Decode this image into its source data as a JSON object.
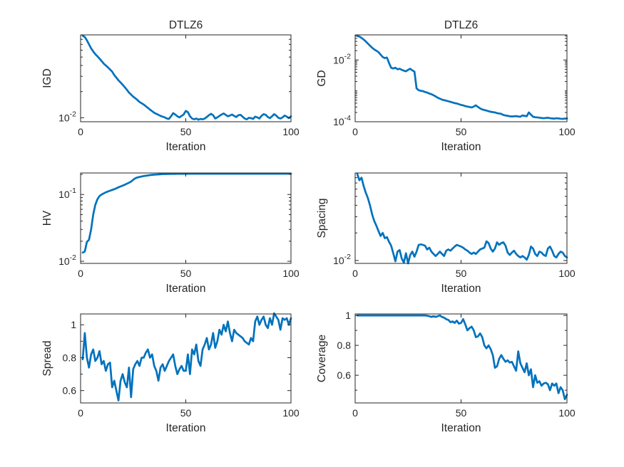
{
  "figure": {
    "kind": "matlab-style-multi-metric-convergence-figure",
    "colors": {
      "line": "#0072BD",
      "axis": "#262626",
      "background": "#FFFFFF"
    }
  },
  "chart_data": [
    {
      "name": "igd",
      "type": "line",
      "title": "DTLZ6",
      "xlabel": "Iteration",
      "ylabel": "IGD",
      "xscale": "linear",
      "yscale": "log",
      "xlim": [
        0,
        100
      ],
      "ylim": [
        0.009,
        0.09
      ],
      "xticks": [
        {
          "v": 0,
          "label": "0"
        },
        {
          "v": 50,
          "label": "50"
        },
        {
          "v": 100,
          "label": "100"
        }
      ],
      "yticks": [
        {
          "v": 0.01,
          "label": "10^{-2}"
        }
      ],
      "yminor": [],
      "grid": false,
      "legend": "none",
      "x_start": 1,
      "x_step": 1,
      "y": [
        0.088,
        0.085,
        0.078,
        0.07,
        0.063,
        0.058,
        0.054,
        0.051,
        0.048,
        0.045,
        0.042,
        0.04,
        0.038,
        0.036,
        0.034,
        0.031,
        0.029,
        0.027,
        0.0255,
        0.024,
        0.0225,
        0.021,
        0.0195,
        0.0185,
        0.0175,
        0.0168,
        0.016,
        0.0152,
        0.0147,
        0.0142,
        0.0136,
        0.013,
        0.0124,
        0.0119,
        0.0114,
        0.0111,
        0.0108,
        0.0105,
        0.0103,
        0.0101,
        0.0098,
        0.0097,
        0.0104,
        0.0113,
        0.0109,
        0.0104,
        0.0101,
        0.0105,
        0.0109,
        0.012,
        0.0116,
        0.0104,
        0.0098,
        0.0096,
        0.0098,
        0.0095,
        0.0097,
        0.0096,
        0.0098,
        0.0102,
        0.0107,
        0.0111,
        0.0107,
        0.0098,
        0.0101,
        0.0105,
        0.0109,
        0.0112,
        0.0108,
        0.0104,
        0.0106,
        0.0109,
        0.0105,
        0.0102,
        0.0107,
        0.0108,
        0.0103,
        0.0098,
        0.0096,
        0.01,
        0.0099,
        0.0097,
        0.0103,
        0.0101,
        0.0098,
        0.0105,
        0.011,
        0.0108,
        0.0102,
        0.0099,
        0.0104,
        0.011,
        0.0106,
        0.01,
        0.0098,
        0.0101,
        0.0106,
        0.0103,
        0.0099,
        0.0104
      ]
    },
    {
      "name": "gd",
      "type": "line",
      "title": "DTLZ6",
      "xlabel": "Iteration",
      "ylabel": "GD",
      "xscale": "linear",
      "yscale": "log",
      "xlim": [
        0,
        100
      ],
      "ylim": [
        0.0001,
        0.065
      ],
      "xticks": [
        {
          "v": 0,
          "label": "0"
        },
        {
          "v": 50,
          "label": "50"
        },
        {
          "v": 100,
          "label": "100"
        }
      ],
      "yticks": [
        {
          "v": 0.01,
          "label": "10^{-2}"
        },
        {
          "v": 0.0001,
          "label": "10^{-4}"
        }
      ],
      "yminor": [],
      "grid": false,
      "legend": "none",
      "x_start": 1,
      "x_step": 1,
      "y": [
        0.06,
        0.057,
        0.052,
        0.046,
        0.04,
        0.034,
        0.029,
        0.025,
        0.022,
        0.02,
        0.018,
        0.015,
        0.0125,
        0.0115,
        0.012,
        0.008,
        0.0056,
        0.0053,
        0.0056,
        0.005,
        0.0052,
        0.0048,
        0.0045,
        0.0043,
        0.0048,
        0.0052,
        0.0046,
        0.0042,
        0.0012,
        0.00105,
        0.001,
        0.00098,
        0.00092,
        0.00088,
        0.00082,
        0.00078,
        0.00072,
        0.00066,
        0.0006,
        0.00056,
        0.00052,
        0.0005,
        0.00048,
        0.00046,
        0.00044,
        0.00042,
        0.0004,
        0.00039,
        0.00037,
        0.00035,
        0.00034,
        0.00032,
        0.00031,
        0.0003,
        0.00029,
        0.00031,
        0.00034,
        0.0003,
        0.00027,
        0.00025,
        0.00024,
        0.00023,
        0.00022,
        0.00021,
        0.000205,
        0.0002,
        0.00019,
        0.000185,
        0.00018,
        0.000165,
        0.00016,
        0.000155,
        0.00015,
        0.000148,
        0.00015,
        0.000152,
        0.000148,
        0.000145,
        0.00016,
        0.000155,
        0.00015,
        0.0002,
        0.00017,
        0.000145,
        0.00014,
        0.000138,
        0.000135,
        0.000132,
        0.00013,
        0.000132,
        0.000135,
        0.00013,
        0.000128,
        0.000126,
        0.00013,
        0.000128,
        0.000125,
        0.000124,
        0.000126,
        0.000128
      ]
    },
    {
      "name": "hv",
      "type": "line",
      "title": "",
      "xlabel": "Iteration",
      "ylabel": "HV",
      "xscale": "linear",
      "yscale": "log",
      "xlim": [
        0,
        100
      ],
      "ylim": [
        0.0093,
        0.21
      ],
      "xticks": [
        {
          "v": 0,
          "label": "0"
        },
        {
          "v": 50,
          "label": "50"
        },
        {
          "v": 100,
          "label": "100"
        }
      ],
      "yticks": [
        {
          "v": 0.1,
          "label": "10^{-1}"
        },
        {
          "v": 0.01,
          "label": "10^{-2}"
        }
      ],
      "yminor": [],
      "grid": false,
      "legend": "none",
      "x_start": 1,
      "x_step": 1,
      "y": [
        0.0135,
        0.014,
        0.0195,
        0.021,
        0.03,
        0.05,
        0.07,
        0.085,
        0.095,
        0.1,
        0.104,
        0.108,
        0.111,
        0.114,
        0.117,
        0.12,
        0.124,
        0.128,
        0.132,
        0.136,
        0.14,
        0.145,
        0.15,
        0.156,
        0.166,
        0.175,
        0.18,
        0.183,
        0.186,
        0.189,
        0.191,
        0.193,
        0.195,
        0.197,
        0.198,
        0.199,
        0.2,
        0.201,
        0.202,
        0.2025,
        0.203,
        0.2032,
        0.2034,
        0.2036,
        0.2038,
        0.204,
        0.204,
        0.2042,
        0.2042,
        0.2044,
        0.2044,
        0.2045,
        0.2045,
        0.2046,
        0.2046,
        0.2046,
        0.2047,
        0.2047,
        0.2047,
        0.2048,
        0.2048,
        0.2048,
        0.2048,
        0.2049,
        0.2049,
        0.2049,
        0.2049,
        0.2049,
        0.205,
        0.205,
        0.205,
        0.205,
        0.205,
        0.205,
        0.205,
        0.205,
        0.205,
        0.205,
        0.205,
        0.205,
        0.205,
        0.205,
        0.205,
        0.205,
        0.205,
        0.205,
        0.205,
        0.205,
        0.205,
        0.205,
        0.205,
        0.205,
        0.205,
        0.205,
        0.205,
        0.205,
        0.205,
        0.205,
        0.205,
        0.205
      ]
    },
    {
      "name": "spacing",
      "type": "line",
      "title": "",
      "xlabel": "Iteration",
      "ylabel": "Spacing",
      "xscale": "linear",
      "yscale": "log",
      "xlim": [
        0,
        100
      ],
      "ylim": [
        0.0093,
        0.09
      ],
      "xticks": [
        {
          "v": 0,
          "label": "0"
        },
        {
          "v": 50,
          "label": "50"
        },
        {
          "v": 100,
          "label": "100"
        }
      ],
      "yticks": [
        {
          "v": 0.01,
          "label": "10^{-2}"
        }
      ],
      "yminor": [],
      "grid": false,
      "legend": "none",
      "x_start": 1,
      "x_step": 1,
      "y": [
        0.088,
        0.075,
        0.08,
        0.065,
        0.055,
        0.048,
        0.04,
        0.032,
        0.027,
        0.024,
        0.021,
        0.0185,
        0.02,
        0.0175,
        0.018,
        0.016,
        0.0145,
        0.012,
        0.0098,
        0.0125,
        0.013,
        0.0105,
        0.0095,
        0.012,
        0.0093,
        0.0115,
        0.0125,
        0.011,
        0.0125,
        0.0148,
        0.015,
        0.0148,
        0.0145,
        0.0132,
        0.0138,
        0.0125,
        0.0118,
        0.0112,
        0.0118,
        0.0125,
        0.0118,
        0.0112,
        0.0128,
        0.0132,
        0.0128,
        0.0135,
        0.0142,
        0.0148,
        0.0145,
        0.0142,
        0.0138,
        0.0132,
        0.0128,
        0.0122,
        0.0118,
        0.0122,
        0.0118,
        0.0125,
        0.0132,
        0.0135,
        0.0138,
        0.0162,
        0.0155,
        0.0135,
        0.0125,
        0.0135,
        0.0158,
        0.0148,
        0.0155,
        0.0158,
        0.0145,
        0.0122,
        0.0115,
        0.0122,
        0.0128,
        0.0118,
        0.0112,
        0.0108,
        0.0112,
        0.0108,
        0.0102,
        0.0115,
        0.0142,
        0.0135,
        0.0118,
        0.0112,
        0.0125,
        0.0122,
        0.0115,
        0.0112,
        0.0135,
        0.0142,
        0.0128,
        0.0112,
        0.0108,
        0.0118,
        0.0125,
        0.0122,
        0.0112,
        0.0108
      ]
    },
    {
      "name": "spread",
      "type": "line",
      "title": "",
      "xlabel": "Iteration",
      "ylabel": "Spread",
      "xscale": "linear",
      "yscale": "linear",
      "xlim": [
        0,
        100
      ],
      "ylim": [
        0.525,
        1.066
      ],
      "xticks": [
        {
          "v": 0,
          "label": "0"
        },
        {
          "v": 50,
          "label": "50"
        },
        {
          "v": 100,
          "label": "100"
        }
      ],
      "yticks": [
        {
          "v": 1,
          "label": "1"
        },
        {
          "v": 0.8,
          "label": "0.8"
        },
        {
          "v": 0.6,
          "label": "0.6"
        }
      ],
      "yminor": [
        0.9,
        0.7
      ],
      "grid": false,
      "legend": "none",
      "x_start": 1,
      "x_step": 1,
      "y": [
        0.79,
        0.95,
        0.8,
        0.74,
        0.82,
        0.85,
        0.78,
        0.8,
        0.84,
        0.76,
        0.78,
        0.72,
        0.76,
        0.77,
        0.62,
        0.66,
        0.6,
        0.54,
        0.66,
        0.7,
        0.65,
        0.62,
        0.74,
        0.56,
        0.73,
        0.76,
        0.78,
        0.75,
        0.8,
        0.8,
        0.83,
        0.85,
        0.8,
        0.82,
        0.75,
        0.72,
        0.66,
        0.74,
        0.76,
        0.72,
        0.75,
        0.78,
        0.8,
        0.82,
        0.75,
        0.7,
        0.73,
        0.75,
        0.72,
        0.72,
        0.82,
        0.7,
        0.85,
        0.82,
        0.88,
        0.78,
        0.75,
        0.85,
        0.88,
        0.92,
        0.85,
        0.88,
        0.95,
        0.86,
        0.9,
        0.97,
        0.94,
        1.0,
        0.96,
        1.02,
        0.95,
        0.9,
        0.97,
        0.95,
        0.94,
        0.93,
        0.92,
        0.9,
        0.89,
        0.88,
        0.92,
        0.9,
        1.02,
        1.05,
        1.0,
        1.03,
        1.05,
        1.0,
        0.98,
        1.04,
        1.0,
        1.07,
        1.05,
        1.03,
        0.97,
        1.04,
        1.03,
        1.04,
        1.0,
        1.04
      ]
    },
    {
      "name": "coverage",
      "type": "line",
      "title": "",
      "xlabel": "Iteration",
      "ylabel": "Coverage",
      "xscale": "linear",
      "yscale": "linear",
      "xlim": [
        0,
        100
      ],
      "ylim": [
        0.415,
        1.01
      ],
      "xticks": [
        {
          "v": 0,
          "label": "0"
        },
        {
          "v": 50,
          "label": "50"
        },
        {
          "v": 100,
          "label": "100"
        }
      ],
      "yticks": [
        {
          "v": 1,
          "label": "1"
        },
        {
          "v": 0.8,
          "label": "0.8"
        },
        {
          "v": 0.6,
          "label": "0.6"
        }
      ],
      "yminor": [
        0.9,
        0.7,
        0.5
      ],
      "grid": false,
      "legend": "none",
      "x_start": 1,
      "x_step": 1,
      "y": [
        1,
        1,
        1,
        1,
        1,
        1,
        1,
        1,
        1,
        1,
        1,
        1,
        1,
        1,
        1,
        1,
        1,
        1,
        1,
        1,
        1,
        1,
        1,
        1,
        1,
        1,
        1,
        1,
        1,
        1,
        1,
        1,
        1,
        0.998,
        0.995,
        0.99,
        0.995,
        0.99,
        0.995,
        1.0,
        0.99,
        0.985,
        0.975,
        0.97,
        0.955,
        0.96,
        0.95,
        0.965,
        0.945,
        0.95,
        0.975,
        0.94,
        0.9,
        0.915,
        0.925,
        0.9,
        0.855,
        0.86,
        0.88,
        0.855,
        0.8,
        0.78,
        0.8,
        0.775,
        0.735,
        0.65,
        0.66,
        0.71,
        0.735,
        0.71,
        0.69,
        0.7,
        0.685,
        0.69,
        0.66,
        0.63,
        0.76,
        0.68,
        0.65,
        0.62,
        0.68,
        0.6,
        0.64,
        0.52,
        0.6,
        0.55,
        0.56,
        0.53,
        0.545,
        0.55,
        0.54,
        0.5,
        0.545,
        0.53,
        0.545,
        0.48,
        0.52,
        0.5,
        0.44,
        0.47
      ]
    }
  ]
}
